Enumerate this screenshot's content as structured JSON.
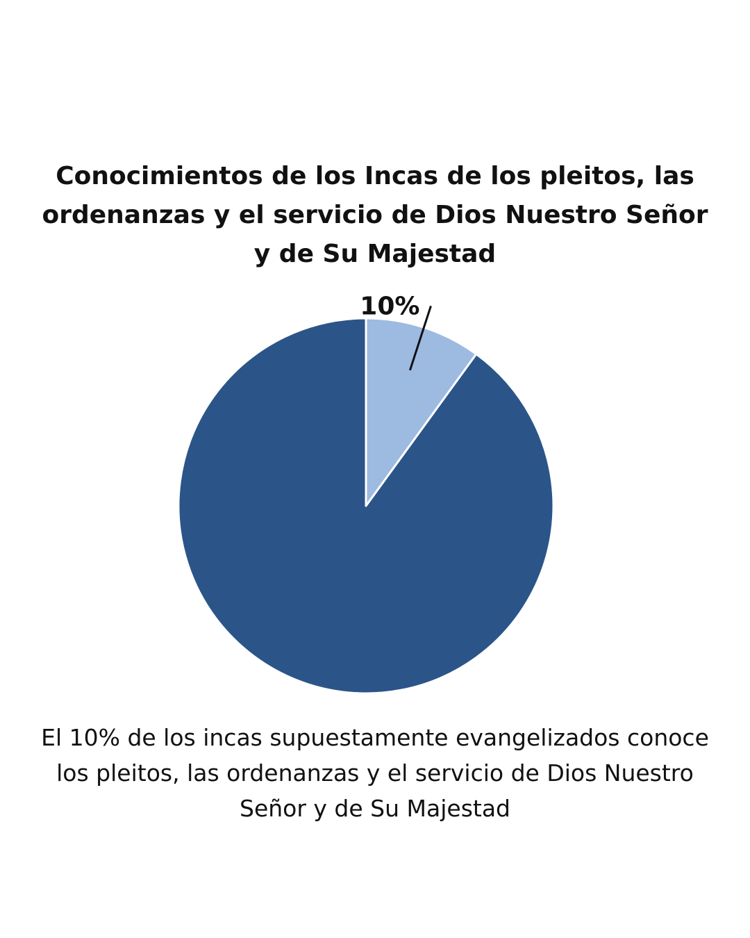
{
  "chart_data": {
    "type": "pie",
    "title": "Conocimientos de los Incas de los pleitos, las ordenanzas y el servicio de Dios Nuestro Señor y de Su Majestad",
    "slices": [
      {
        "value": 90,
        "color": "#2b5589",
        "label": ""
      },
      {
        "value": 10,
        "color": "#9dbae1",
        "label": "10%"
      }
    ],
    "start_angle_deg": 0,
    "direction": "counterclockwise",
    "legend": "none"
  },
  "caption": "El 10% de los incas supuestamente evangelizados conoce los pleitos, las ordenanzas y el servicio de Dios Nuestro Señor y de Su Majestad"
}
